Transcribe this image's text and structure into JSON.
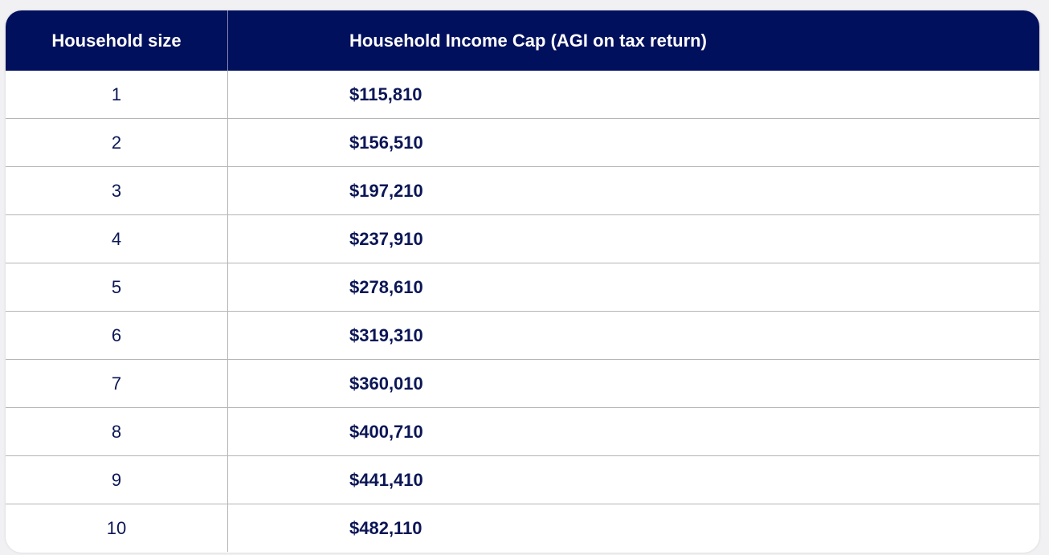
{
  "table": {
    "header": [
      "Household size",
      "Household Income Cap (AGI on tax return)"
    ],
    "rows": [
      [
        "1",
        "$115,810"
      ],
      [
        "2",
        "$156,510"
      ],
      [
        "3",
        "$197,210"
      ],
      [
        "4",
        "$237,910"
      ],
      [
        "5",
        "$278,610"
      ],
      [
        "6",
        "$319,310"
      ],
      [
        "7",
        "$360,010"
      ],
      [
        "8",
        "$400,710"
      ],
      [
        "9",
        "$441,410"
      ],
      [
        "10",
        "$482,110"
      ]
    ]
  }
}
